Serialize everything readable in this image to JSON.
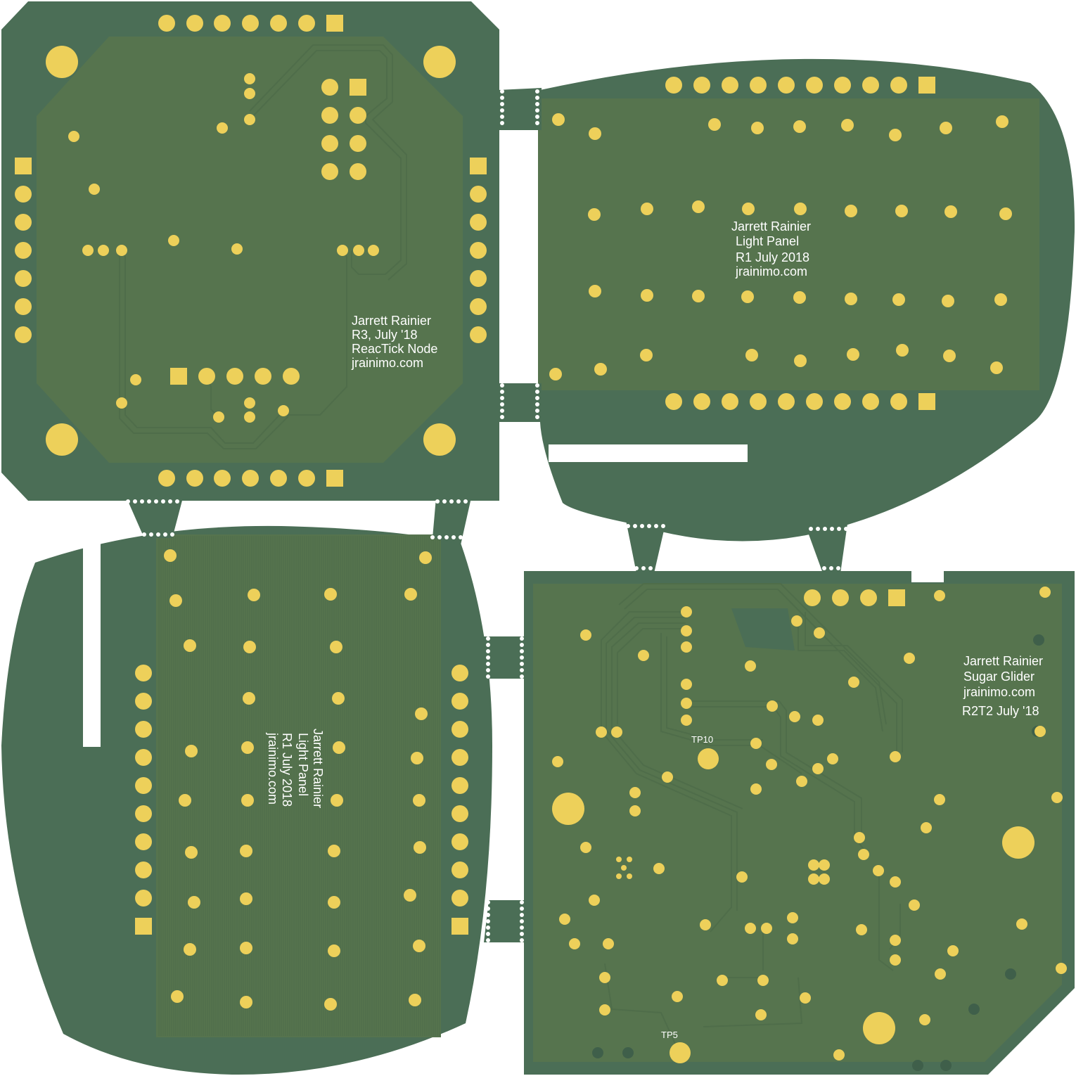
{
  "colors": {
    "background": "#ffffff",
    "soldermask": "#4b6e56",
    "copper_pour": "#56744e",
    "trace": "#4f6d4a",
    "pad": "#edd05a",
    "silkscreen": "#ffffff"
  },
  "panels": {
    "reactick_node": {
      "silk_lines": [
        "Jarrett Rainier",
        "R3, July '18",
        "ReacTick Node",
        "jrainimo.com"
      ]
    },
    "light_panel_top": {
      "silk_lines": [
        "Jarrett Rainier",
        "Light Panel",
        "R1 July 2018",
        "jrainimo.com"
      ]
    },
    "light_panel_bottom": {
      "silk_lines": [
        "Jarrett Rainier",
        "Light Panel",
        "R1 July 2018",
        "jrainimo.com"
      ]
    },
    "sugar_glider": {
      "silk_lines": [
        "Jarrett Rainier",
        "Sugar Glider",
        "jrainimo.com",
        "R2T2 July '18"
      ],
      "test_points": [
        "TP10",
        "TP5"
      ]
    }
  }
}
